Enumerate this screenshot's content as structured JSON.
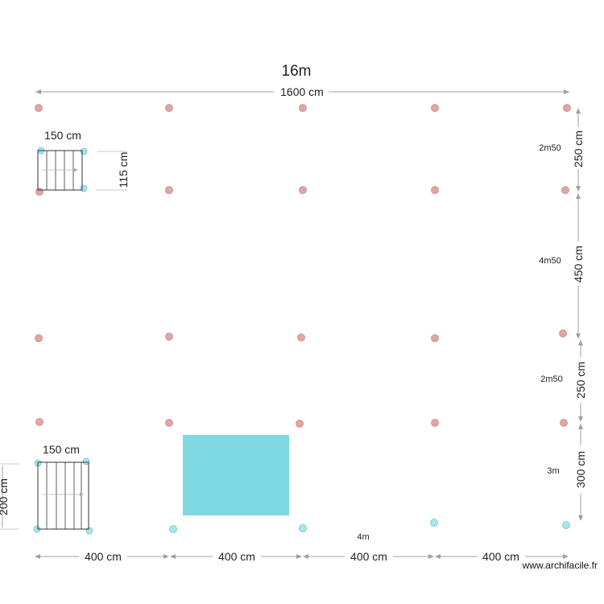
{
  "colors": {
    "pillar_red": "#e0a5a5",
    "pillar_red_stroke": "#c48a8a",
    "pillar_cyan": "#a8e6ec",
    "pillar_cyan_stroke": "#72c3cb",
    "room_fill": "#7fd9e3",
    "dim_line": "#a0a0a0",
    "stair_line": "#333333"
  },
  "labels": {
    "title": "16m",
    "top_width": "1600 cm",
    "stair1_width": "150 cm",
    "stair1_height": "115 cm",
    "stair2_width": "150 cm",
    "stair2_height": "200 cm",
    "right_dims": [
      "250 cm",
      "450 cm",
      "250 cm",
      "300 cm"
    ],
    "right_texts": [
      "2m50",
      "4m50",
      "2m50",
      "3m"
    ],
    "bottom_dims": [
      "400 cm",
      "400 cm",
      "400 cm",
      "400 cm"
    ],
    "bottom_text": "4m",
    "watermark": "www.archifacile.fr"
  },
  "icons": {
    "pillar": "circle-pillar-icon",
    "stair": "staircase-icon",
    "arrow": "arrowhead-icon"
  }
}
